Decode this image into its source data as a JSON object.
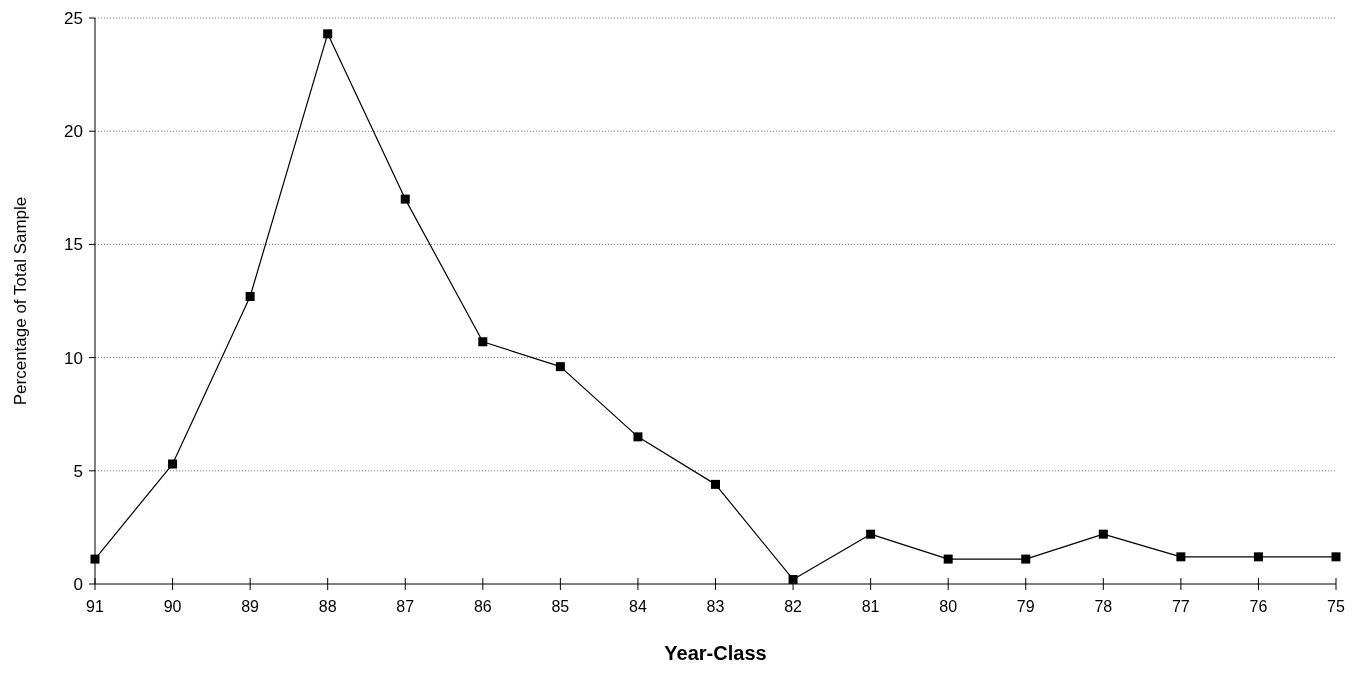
{
  "chart_data": {
    "type": "line",
    "xlabel": "Year-Class",
    "ylabel": "Percentage of Total Sample",
    "categories": [
      "91",
      "90",
      "89",
      "88",
      "87",
      "86",
      "85",
      "84",
      "83",
      "82",
      "81",
      "80",
      "79",
      "78",
      "77",
      "76",
      "75"
    ],
    "series": [
      {
        "color": "#000000",
        "values": [
          1.1,
          5.3,
          12.7,
          24.3,
          17.0,
          10.7,
          9.6,
          6.5,
          4.4,
          0.2,
          2.2,
          1.1,
          1.1,
          2.2,
          1.2,
          1.2,
          1.2
        ]
      }
    ],
    "ylim": [
      0,
      25
    ],
    "yticks": [
      0,
      5,
      10,
      15,
      20,
      25
    ],
    "grid": "y",
    "marker": "square",
    "line_style": "solid"
  }
}
